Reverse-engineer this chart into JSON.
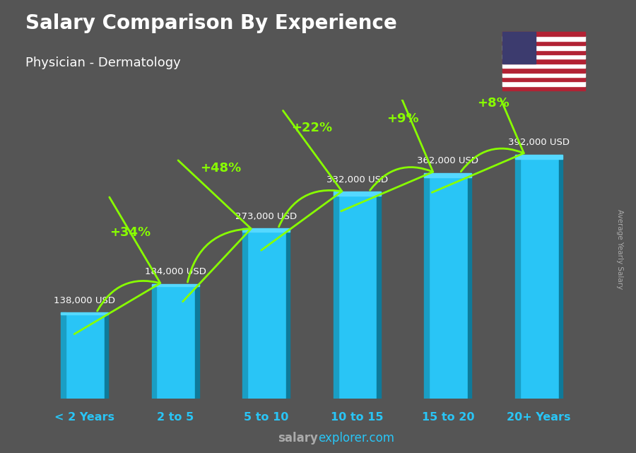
{
  "title": "Salary Comparison By Experience",
  "subtitle": "Physician - Dermatology",
  "categories": [
    "< 2 Years",
    "2 to 5",
    "5 to 10",
    "10 to 15",
    "15 to 20",
    "20+ Years"
  ],
  "values": [
    138000,
    184000,
    273000,
    332000,
    362000,
    392000
  ],
  "labels": [
    "138,000 USD",
    "184,000 USD",
    "273,000 USD",
    "332,000 USD",
    "362,000 USD",
    "392,000 USD"
  ],
  "pct_changes": [
    "+34%",
    "+48%",
    "+22%",
    "+9%",
    "+8%"
  ],
  "bar_color_face": "#29C5F6",
  "bar_color_left": "#1A9EC4",
  "bar_color_top": "#55D8FF",
  "bar_color_dark": "#0E7A9A",
  "bg_color": "#555555",
  "title_color": "#ffffff",
  "label_color": "#ffffff",
  "pct_color": "#88FF00",
  "xticklabel_color": "#29C5F6",
  "footer_salary_color": "#888888",
  "footer_explorer_color": "#29C5F6",
  "ylabel_text": "Average Yearly Salary",
  "footer_bold": "salary",
  "footer_normal": "explorer.com",
  "ylim": [
    0,
    480000
  ],
  "bar_width": 0.52
}
